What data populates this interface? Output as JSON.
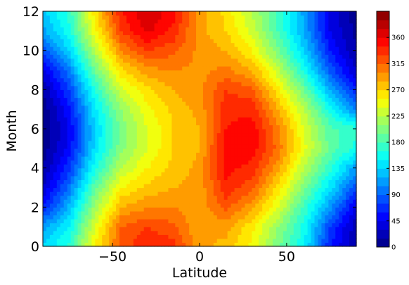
{
  "chart_data": {
    "type": "heatmap",
    "subtype": "filled-contour",
    "title": "",
    "xlabel": "Latitude",
    "ylabel": "Month",
    "xlim": [
      -90,
      90
    ],
    "ylim": [
      0,
      12
    ],
    "x_ticks": [
      -50,
      0,
      50
    ],
    "y_ticks": [
      0,
      2,
      4,
      6,
      8,
      10,
      12
    ],
    "x_tick_labels": [
      "−50",
      "0",
      "50"
    ],
    "y_tick_labels": [
      "0",
      "2",
      "4",
      "6",
      "8",
      "10",
      "12"
    ],
    "colormap": "jet",
    "colorbar": {
      "vmin": 0,
      "vmax": 405,
      "ticks": [
        0,
        45,
        90,
        135,
        180,
        225,
        270,
        315,
        360
      ],
      "tick_labels": [
        "0",
        "45",
        "90",
        "135",
        "180",
        "225",
        "270",
        "315",
        "360"
      ]
    },
    "x": [
      -90,
      -75,
      -60,
      -45,
      -30,
      -15,
      0,
      15,
      30,
      45,
      60,
      75,
      90
    ],
    "y": [
      0,
      1,
      2,
      3,
      4,
      5,
      6,
      7,
      8,
      9,
      10,
      11,
      12
    ],
    "z": [
      [
        135,
        170,
        255,
        320,
        345,
        335,
        290,
        280,
        250,
        200,
        150,
        60,
        15
      ],
      [
        115,
        150,
        240,
        315,
        330,
        320,
        285,
        290,
        260,
        210,
        160,
        75,
        20
      ],
      [
        60,
        125,
        215,
        285,
        300,
        300,
        290,
        320,
        290,
        240,
        175,
        110,
        40
      ],
      [
        30,
        95,
        190,
        255,
        275,
        285,
        290,
        340,
        320,
        265,
        200,
        140,
        80
      ],
      [
        15,
        70,
        160,
        225,
        255,
        275,
        290,
        350,
        340,
        290,
        225,
        170,
        110
      ],
      [
        5,
        50,
        140,
        205,
        240,
        270,
        285,
        350,
        355,
        310,
        245,
        190,
        160
      ],
      [
        2,
        45,
        135,
        200,
        240,
        270,
        285,
        345,
        355,
        305,
        240,
        185,
        170
      ],
      [
        5,
        55,
        145,
        210,
        250,
        275,
        290,
        340,
        340,
        285,
        225,
        160,
        100
      ],
      [
        15,
        75,
        165,
        235,
        265,
        285,
        295,
        330,
        320,
        260,
        195,
        120,
        60
      ],
      [
        40,
        100,
        195,
        265,
        295,
        300,
        295,
        305,
        285,
        230,
        160,
        85,
        30
      ],
      [
        80,
        135,
        225,
        300,
        330,
        320,
        295,
        285,
        255,
        200,
        135,
        60,
        15
      ],
      [
        115,
        160,
        250,
        330,
        365,
        340,
        290,
        270,
        235,
        180,
        120,
        45,
        10
      ],
      [
        130,
        170,
        265,
        345,
        375,
        350,
        295,
        265,
        225,
        175,
        115,
        40,
        5
      ]
    ]
  }
}
